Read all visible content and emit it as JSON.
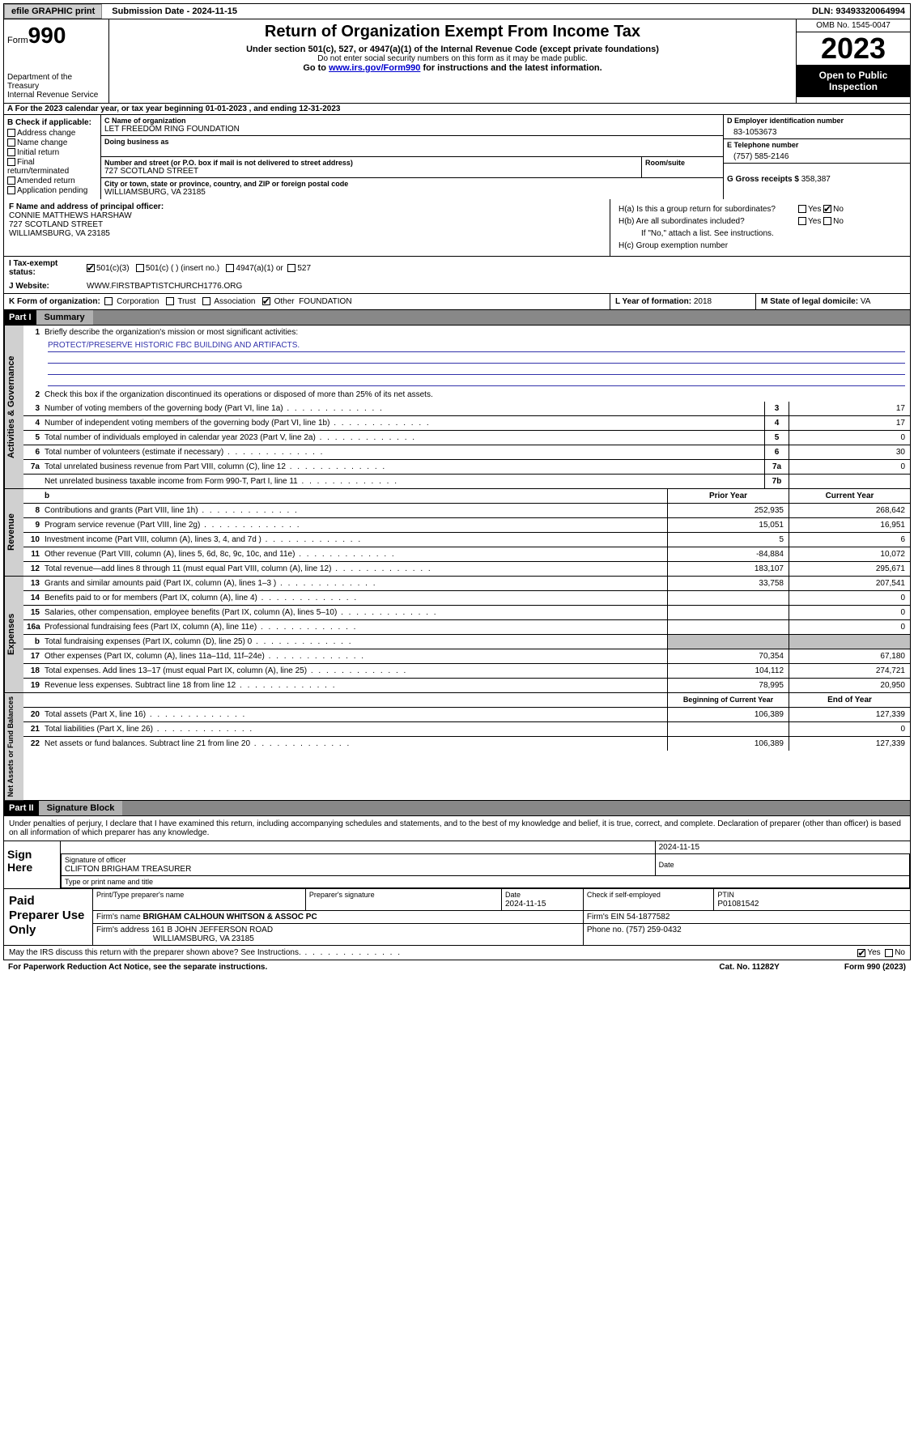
{
  "topbar": {
    "efile": "efile GRAPHIC print",
    "submission": "Submission Date - 2024-11-15",
    "dln": "DLN: 93493320064994"
  },
  "header": {
    "form_word": "Form",
    "form_num": "990",
    "dept": "Department of the Treasury\nInternal Revenue Service",
    "title": "Return of Organization Exempt From Income Tax",
    "sub1": "Under section 501(c), 527, or 4947(a)(1) of the Internal Revenue Code (except private foundations)",
    "sub2": "Do not enter social security numbers on this form as it may be made public.",
    "sub3_pre": "Go to ",
    "sub3_link": "www.irs.gov/Form990",
    "sub3_post": " for instructions and the latest information.",
    "omb": "OMB No. 1545-0047",
    "year": "2023",
    "open": "Open to Public Inspection"
  },
  "row_a": "For the 2023 calendar year, or tax year beginning 01-01-2023    , and ending 12-31-2023",
  "box_b": {
    "title": "B Check if applicable:",
    "opts": [
      "Address change",
      "Name change",
      "Initial return",
      "Final return/terminated",
      "Amended return",
      "Application pending"
    ]
  },
  "box_c": {
    "name_lbl": "C Name of organization",
    "name": "LET FREEDOM RING FOUNDATION",
    "dba_lbl": "Doing business as",
    "dba": "",
    "addr_lbl": "Number and street (or P.O. box if mail is not delivered to street address)",
    "room_lbl": "Room/suite",
    "addr": "727 SCOTLAND STREET",
    "city_lbl": "City or town, state or province, country, and ZIP or foreign postal code",
    "city": "WILLIAMSBURG, VA  23185"
  },
  "box_d": {
    "ein_lbl": "D Employer identification number",
    "ein": "83-1053673",
    "tel_lbl": "E Telephone number",
    "tel": "(757) 585-2146",
    "gross_lbl": "G Gross receipts $ ",
    "gross": "358,387"
  },
  "box_f": {
    "lbl": "F  Name and address of principal officer:",
    "name": "CONNIE MATTHEWS HARSHAW",
    "addr1": "727 SCOTLAND STREET",
    "addr2": "WILLIAMSBURG, VA  23185"
  },
  "box_h": {
    "ha": "H(a)  Is this a group return for subordinates?",
    "hb": "H(b)  Are all subordinates included?",
    "hb_note": "If \"No,\" attach a list. See instructions.",
    "hc": "H(c)  Group exemption number  "
  },
  "tax_status": {
    "lbl": "I   Tax-exempt status:",
    "o1": "501(c)(3)",
    "o2": "501(c) (  ) (insert no.)",
    "o3": "4947(a)(1) or",
    "o4": "527"
  },
  "website": {
    "lbl": "J   Website: ",
    "val": "WWW.FIRSTBAPTISTCHURCH1776.ORG"
  },
  "box_k": {
    "lbl": "K Form of organization:",
    "opts": [
      "Corporation",
      "Trust",
      "Association",
      "Other"
    ],
    "other": "FOUNDATION"
  },
  "box_l": {
    "lbl": "L Year of formation: ",
    "val": "2018"
  },
  "box_m": {
    "lbl": "M State of legal domicile: ",
    "val": "VA"
  },
  "part1": {
    "hdr": "Part I",
    "title": "Summary"
  },
  "mission": {
    "lbl": "Briefly describe the organization's mission or most significant activities:",
    "txt": "PROTECT/PRESERVE HISTORIC FBC BUILDING AND ARTIFACTS."
  },
  "line2": "Check this box       if the organization discontinued its operations or disposed of more than 25% of its net assets.",
  "gov_lines": [
    {
      "n": "3",
      "d": "Number of voting members of the governing body (Part VI, line 1a)",
      "bn": "3",
      "v": "17"
    },
    {
      "n": "4",
      "d": "Number of independent voting members of the governing body (Part VI, line 1b)",
      "bn": "4",
      "v": "17"
    },
    {
      "n": "5",
      "d": "Total number of individuals employed in calendar year 2023 (Part V, line 2a)",
      "bn": "5",
      "v": "0"
    },
    {
      "n": "6",
      "d": "Total number of volunteers (estimate if necessary)",
      "bn": "6",
      "v": "30"
    },
    {
      "n": "7a",
      "d": "Total unrelated business revenue from Part VIII, column (C), line 12",
      "bn": "7a",
      "v": "0"
    },
    {
      "n": "",
      "d": "Net unrelated business taxable income from Form 990-T, Part I, line 11",
      "bn": "7b",
      "v": ""
    }
  ],
  "rev_hdr": {
    "py": "Prior Year",
    "cy": "Current Year"
  },
  "rev_lines": [
    {
      "n": "8",
      "d": "Contributions and grants (Part VIII, line 1h)",
      "py": "252,935",
      "cy": "268,642"
    },
    {
      "n": "9",
      "d": "Program service revenue (Part VIII, line 2g)",
      "py": "15,051",
      "cy": "16,951"
    },
    {
      "n": "10",
      "d": "Investment income (Part VIII, column (A), lines 3, 4, and 7d )",
      "py": "5",
      "cy": "6"
    },
    {
      "n": "11",
      "d": "Other revenue (Part VIII, column (A), lines 5, 6d, 8c, 9c, 10c, and 11e)",
      "py": "-84,884",
      "cy": "10,072"
    },
    {
      "n": "12",
      "d": "Total revenue—add lines 8 through 11 (must equal Part VIII, column (A), line 12)",
      "py": "183,107",
      "cy": "295,671"
    }
  ],
  "exp_lines": [
    {
      "n": "13",
      "d": "Grants and similar amounts paid (Part IX, column (A), lines 1–3 )",
      "py": "33,758",
      "cy": "207,541"
    },
    {
      "n": "14",
      "d": "Benefits paid to or for members (Part IX, column (A), line 4)",
      "py": "",
      "cy": "0"
    },
    {
      "n": "15",
      "d": "Salaries, other compensation, employee benefits (Part IX, column (A), lines 5–10)",
      "py": "",
      "cy": "0"
    },
    {
      "n": "16a",
      "d": "Professional fundraising fees (Part IX, column (A), line 11e)",
      "py": "",
      "cy": "0"
    },
    {
      "n": "b",
      "d": "Total fundraising expenses (Part IX, column (D), line 25) 0",
      "py": "shade",
      "cy": "shade"
    },
    {
      "n": "17",
      "d": "Other expenses (Part IX, column (A), lines 11a–11d, 11f–24e)",
      "py": "70,354",
      "cy": "67,180"
    },
    {
      "n": "18",
      "d": "Total expenses. Add lines 13–17 (must equal Part IX, column (A), line 25)",
      "py": "104,112",
      "cy": "274,721"
    },
    {
      "n": "19",
      "d": "Revenue less expenses. Subtract line 18 from line 12",
      "py": "78,995",
      "cy": "20,950"
    }
  ],
  "na_hdr": {
    "py": "Beginning of Current Year",
    "cy": "End of Year"
  },
  "na_lines": [
    {
      "n": "20",
      "d": "Total assets (Part X, line 16)",
      "py": "106,389",
      "cy": "127,339"
    },
    {
      "n": "21",
      "d": "Total liabilities (Part X, line 26)",
      "py": "",
      "cy": "0"
    },
    {
      "n": "22",
      "d": "Net assets or fund balances. Subtract line 21 from line 20",
      "py": "106,389",
      "cy": "127,339"
    }
  ],
  "part2": {
    "hdr": "Part II",
    "title": "Signature Block"
  },
  "sig_txt": "Under penalties of perjury, I declare that I have examined this return, including accompanying schedules and statements, and to the best of my knowledge and belief, it is true, correct, and complete. Declaration of preparer (other than officer) is based on all information of which preparer has any knowledge.",
  "sign": {
    "lbl": "Sign Here",
    "sig_lbl": "Signature of officer",
    "date_lbl": "Date",
    "date": "2024-11-15",
    "name": "CLIFTON BRIGHAM TREASURER",
    "name_lbl": "Type or print name and title"
  },
  "prep": {
    "lbl": "Paid Preparer Use Only",
    "h1": "Print/Type preparer's name",
    "h2": "Preparer's signature",
    "h3": "Date",
    "h3v": "2024-11-15",
    "h4": "Check       if self-employed",
    "h5": "PTIN",
    "h5v": "P01081542",
    "firm_lbl": "Firm's name    ",
    "firm": "BRIGHAM CALHOUN WHITSON & ASSOC PC",
    "ein_lbl": "Firm's EIN  ",
    "ein": "54-1877582",
    "addr_lbl": "Firm's address ",
    "addr1": "161 B JOHN JEFFERSON ROAD",
    "addr2": "WILLIAMSBURG, VA  23185",
    "phone_lbl": "Phone no. ",
    "phone": "(757) 259-0432"
  },
  "discuss": "May the IRS discuss this return with the preparer shown above? See Instructions.",
  "footer": {
    "l": "For Paperwork Reduction Act Notice, see the separate instructions.",
    "c": "Cat. No. 11282Y",
    "r": "Form 990 (2023)"
  },
  "vtabs": {
    "gov": "Activities & Governance",
    "rev": "Revenue",
    "exp": "Expenses",
    "na": "Net Assets or Fund Balances"
  },
  "yn": {
    "yes": "Yes",
    "no": "No"
  }
}
